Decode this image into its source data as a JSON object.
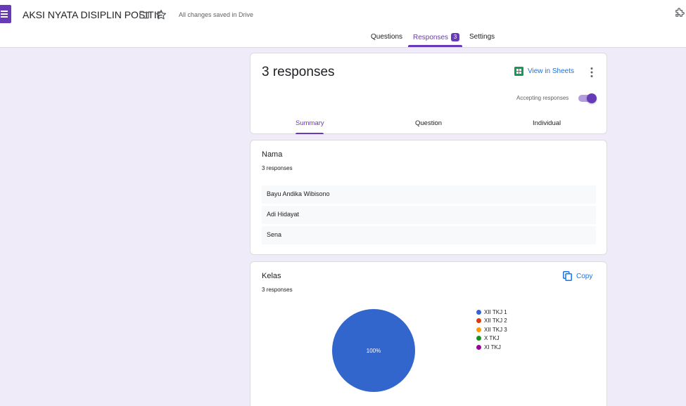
{
  "header": {
    "title": "AKSI NYATA DISIPLIN POSITIF",
    "saved_status": "All changes saved in Drive",
    "tabs": [
      {
        "label": "Questions"
      },
      {
        "label": "Responses",
        "badge": "3"
      },
      {
        "label": "Settings"
      }
    ],
    "active_tab": "Responses"
  },
  "summary_card": {
    "title": "3 responses",
    "view_in_sheets": "View in Sheets",
    "accepting_label": "Accepting responses",
    "accepting_on": true,
    "subtabs": [
      {
        "label": "Summary"
      },
      {
        "label": "Question"
      },
      {
        "label": "Individual"
      }
    ],
    "active_subtab": "Summary"
  },
  "nama": {
    "title": "Nama",
    "count": "3 responses",
    "answers": [
      "Bayu Andika Wibisono",
      "Adi Hidayat",
      "Sena"
    ]
  },
  "kelas": {
    "title": "Kelas",
    "count": "3 responses",
    "copy_label": "Copy"
  },
  "chart_data": {
    "type": "pie",
    "categories": [
      "XII TKJ 1",
      "XII TKJ 2",
      "XII TKJ 3",
      "X TKJ",
      "XI TKJ"
    ],
    "values": [
      100,
      0,
      0,
      0,
      0
    ],
    "slice_label": "100%",
    "colors": [
      "#3366cc",
      "#dc3912",
      "#ff9900",
      "#109618",
      "#990099"
    ],
    "legend_position": "right"
  },
  "colors": {
    "accent": "#673ab7",
    "background": "#f0ebf8",
    "link": "#1a73e8",
    "sheets_green": "#0f9d58"
  }
}
